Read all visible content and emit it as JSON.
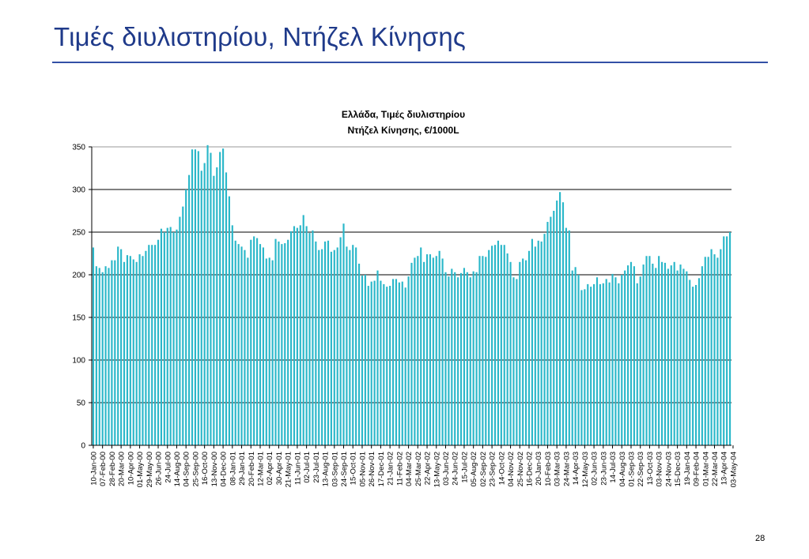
{
  "slide": {
    "title": "Τιμές διυλιστηρίου, Ντήζελ Κίνησης",
    "page_number": "28"
  },
  "colors": {
    "bar": "#2ab7c9",
    "title": "#1f3a8a",
    "rule": "#3350a6",
    "grid": "#000000",
    "top_grid": "#999999"
  },
  "chart_data": {
    "type": "bar",
    "title_line1": "Ελλάδα, Τιμές διυλιστηρίου",
    "title_line2": "Ντήζελ Κίνησης, €/1000L",
    "xlabel": "",
    "ylabel": "",
    "ylim": [
      0,
      350
    ],
    "yticks": [
      0,
      50,
      100,
      150,
      200,
      250,
      300,
      350
    ],
    "grid": true,
    "legend": "none",
    "tick_labels": [
      "10-Jan-00",
      "07-Feb-00",
      "28-Feb-00",
      "20-Mar-00",
      "10-Apr-00",
      "01-May-00",
      "29-May-00",
      "26-Jun-00",
      "24-Jul-00",
      "14-Aug-00",
      "04-Sep-00",
      "25-Sep-00",
      "16-Oct-00",
      "13-Nov-00",
      "04-Dec-00",
      "08-Jan-01",
      "29-Jan-01",
      "20-Feb-01",
      "12-Mar-01",
      "02-Apr-01",
      "30-Apr-01",
      "21-May-01",
      "11-Jun-01",
      "02-Jul-01",
      "23-Jul-01",
      "13-Aug-01",
      "03-Sep-01",
      "24-Sep-01",
      "15-Oct-01",
      "05-Nov-01",
      "26-Nov-01",
      "17-Dec-01",
      "21-Jan-02",
      "11-Feb-02",
      "04-Mar-02",
      "25-Mar-02",
      "22-Apr-02",
      "13-May-02",
      "03-Jun-02",
      "24-Jun-02",
      "15-Jul-02",
      "05-Aug-02",
      "02-Sep-02",
      "23-Sep-02",
      "14-Oct-02",
      "04-Nov-02",
      "25-Nov-02",
      "16-Dec-02",
      "20-Jan-03",
      "10-Feb-03",
      "03-Mar-03",
      "24-Mar-03",
      "14-Apr-03",
      "12-May-03",
      "02-Jun-03",
      "23-Jun-03",
      "14-Jul-03",
      "04-Aug-03",
      "01-Sep-03",
      "22-Sep-03",
      "13-Oct-03",
      "03-Nov-03",
      "24-Nov-03",
      "15-Dec-03",
      "19-Jan-04",
      "09-Feb-04",
      "01-Mar-04",
      "22-Mar-04",
      "13-Apr-04",
      "03-May-04"
    ],
    "values": [
      232,
      210,
      208,
      203,
      210,
      208,
      217,
      217,
      233,
      230,
      215,
      223,
      222,
      218,
      215,
      224,
      222,
      228,
      235,
      235,
      235,
      241,
      254,
      250,
      255,
      256,
      250,
      253,
      268,
      280,
      300,
      317,
      347,
      347,
      345,
      322,
      331,
      352,
      343,
      316,
      326,
      344,
      348,
      320,
      292,
      258,
      240,
      236,
      233,
      229,
      220,
      241,
      245,
      243,
      236,
      232,
      219,
      220,
      217,
      242,
      239,
      236,
      237,
      241,
      251,
      257,
      255,
      258,
      270,
      257,
      249,
      252,
      239,
      229,
      230,
      239,
      240,
      227,
      229,
      232,
      244,
      260,
      233,
      229,
      235,
      232,
      213,
      199,
      200,
      187,
      192,
      193,
      205,
      193,
      189,
      186,
      187,
      195,
      195,
      191,
      192,
      185,
      198,
      214,
      220,
      222,
      232,
      215,
      224,
      224,
      220,
      222,
      228,
      219,
      203,
      198,
      207,
      203,
      197,
      202,
      208,
      203,
      197,
      204,
      203,
      222,
      222,
      221,
      229,
      234,
      235,
      240,
      235,
      235,
      225,
      215,
      197,
      195,
      215,
      219,
      217,
      228,
      242,
      233,
      240,
      239,
      248,
      262,
      268,
      275,
      287,
      297,
      285,
      255,
      252,
      205,
      209,
      200,
      182,
      183,
      189,
      186,
      189,
      197,
      189,
      190,
      195,
      191,
      201,
      197,
      190,
      200,
      205,
      211,
      215,
      210,
      190,
      198,
      212,
      222,
      222,
      213,
      208,
      222,
      215,
      214,
      207,
      211,
      215,
      205,
      212,
      207,
      204,
      194,
      186,
      188,
      196,
      210,
      221,
      221,
      230,
      224,
      220,
      230,
      245,
      245,
      250
    ]
  }
}
